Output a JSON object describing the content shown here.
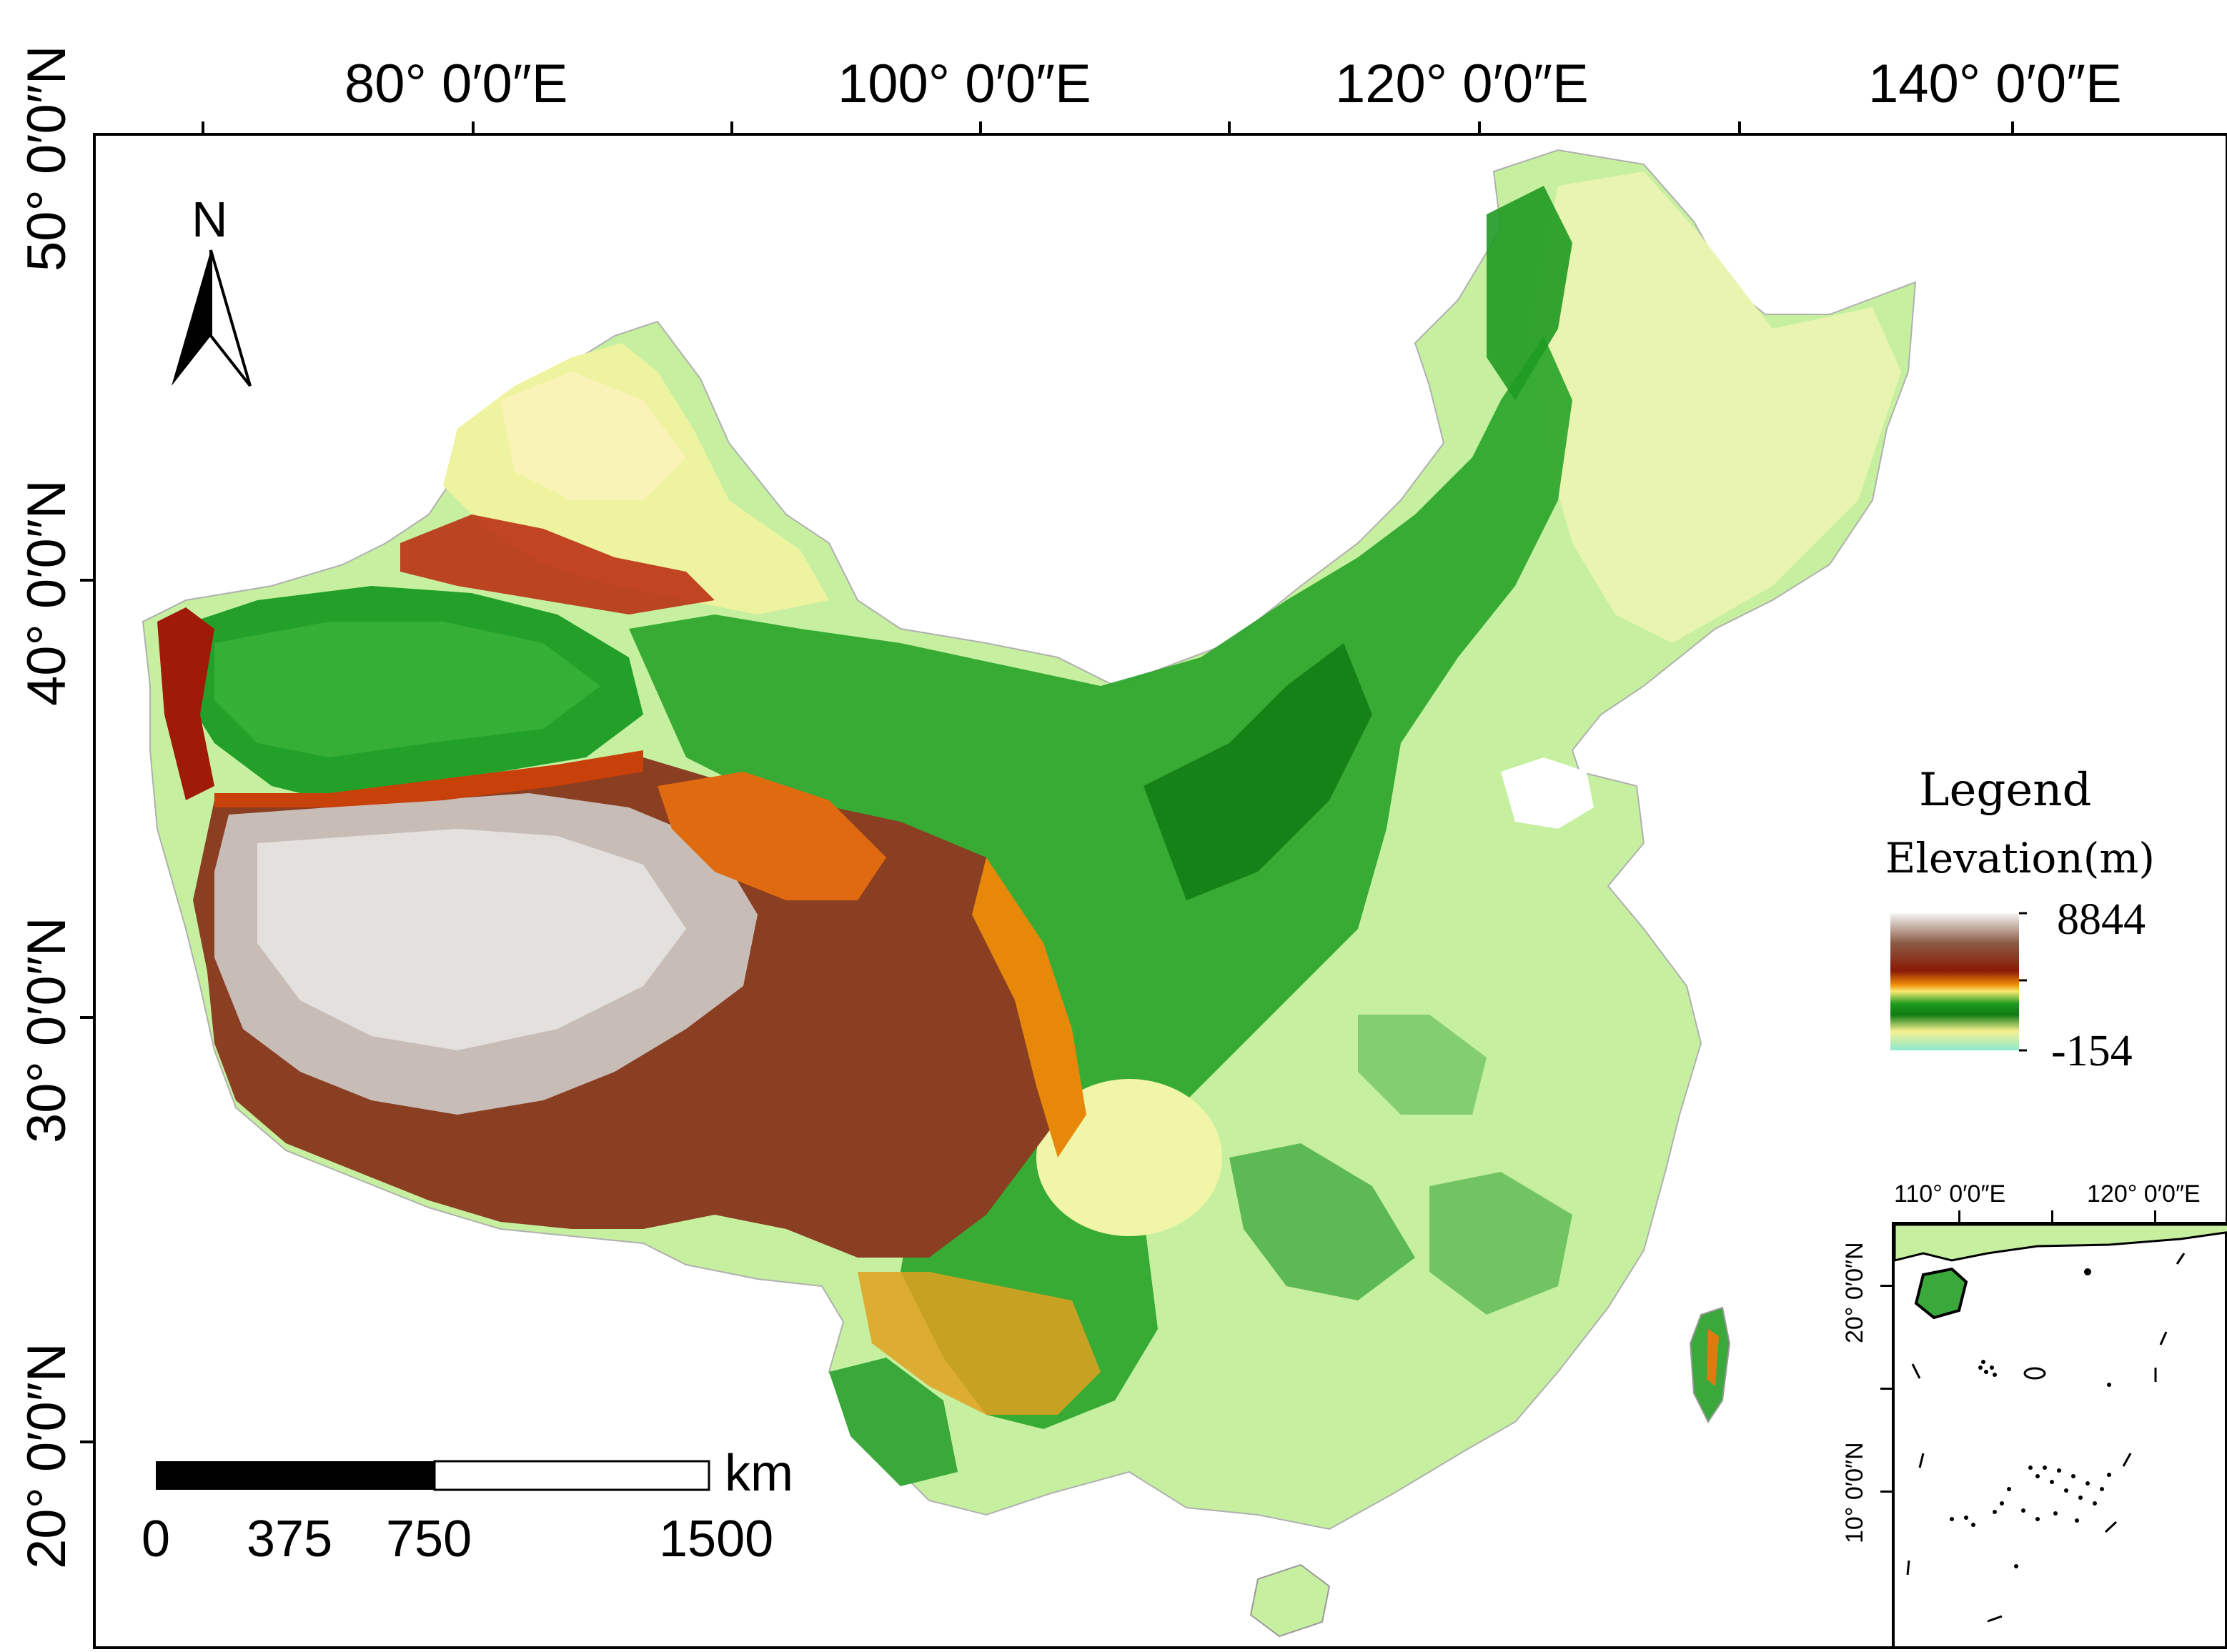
{
  "map": {
    "longitude_labels": [
      "80° 0′0″E",
      "100° 0′0″E",
      "120° 0′0″E",
      "140° 0′0″E"
    ],
    "latitude_labels": [
      "50° 0′0″N",
      "40° 0′0″N",
      "30° 0′0″N",
      "20° 0′0″N"
    ],
    "north_label": "N",
    "colors": {
      "low": "#8de8cf",
      "green": "#1d9a1f",
      "yellow": "#f5e86a",
      "orange": "#e87a0a",
      "red": "#a81a06",
      "brown": "#7a3a20",
      "high": "#f0f0f0",
      "frame": "#000000"
    }
  },
  "legend": {
    "title": "Legend",
    "subtitle": "Elevation(m)",
    "max": "8844",
    "min": "-154"
  },
  "scale_bar": {
    "unit": "km",
    "labels": [
      "0",
      "375",
      "750",
      "1500"
    ]
  },
  "inset": {
    "longitude_labels": [
      "110° 0′0″E",
      "120° 0′0″E"
    ],
    "latitude_labels": [
      "20° 0′0″N",
      "10° 0′0″N"
    ]
  }
}
